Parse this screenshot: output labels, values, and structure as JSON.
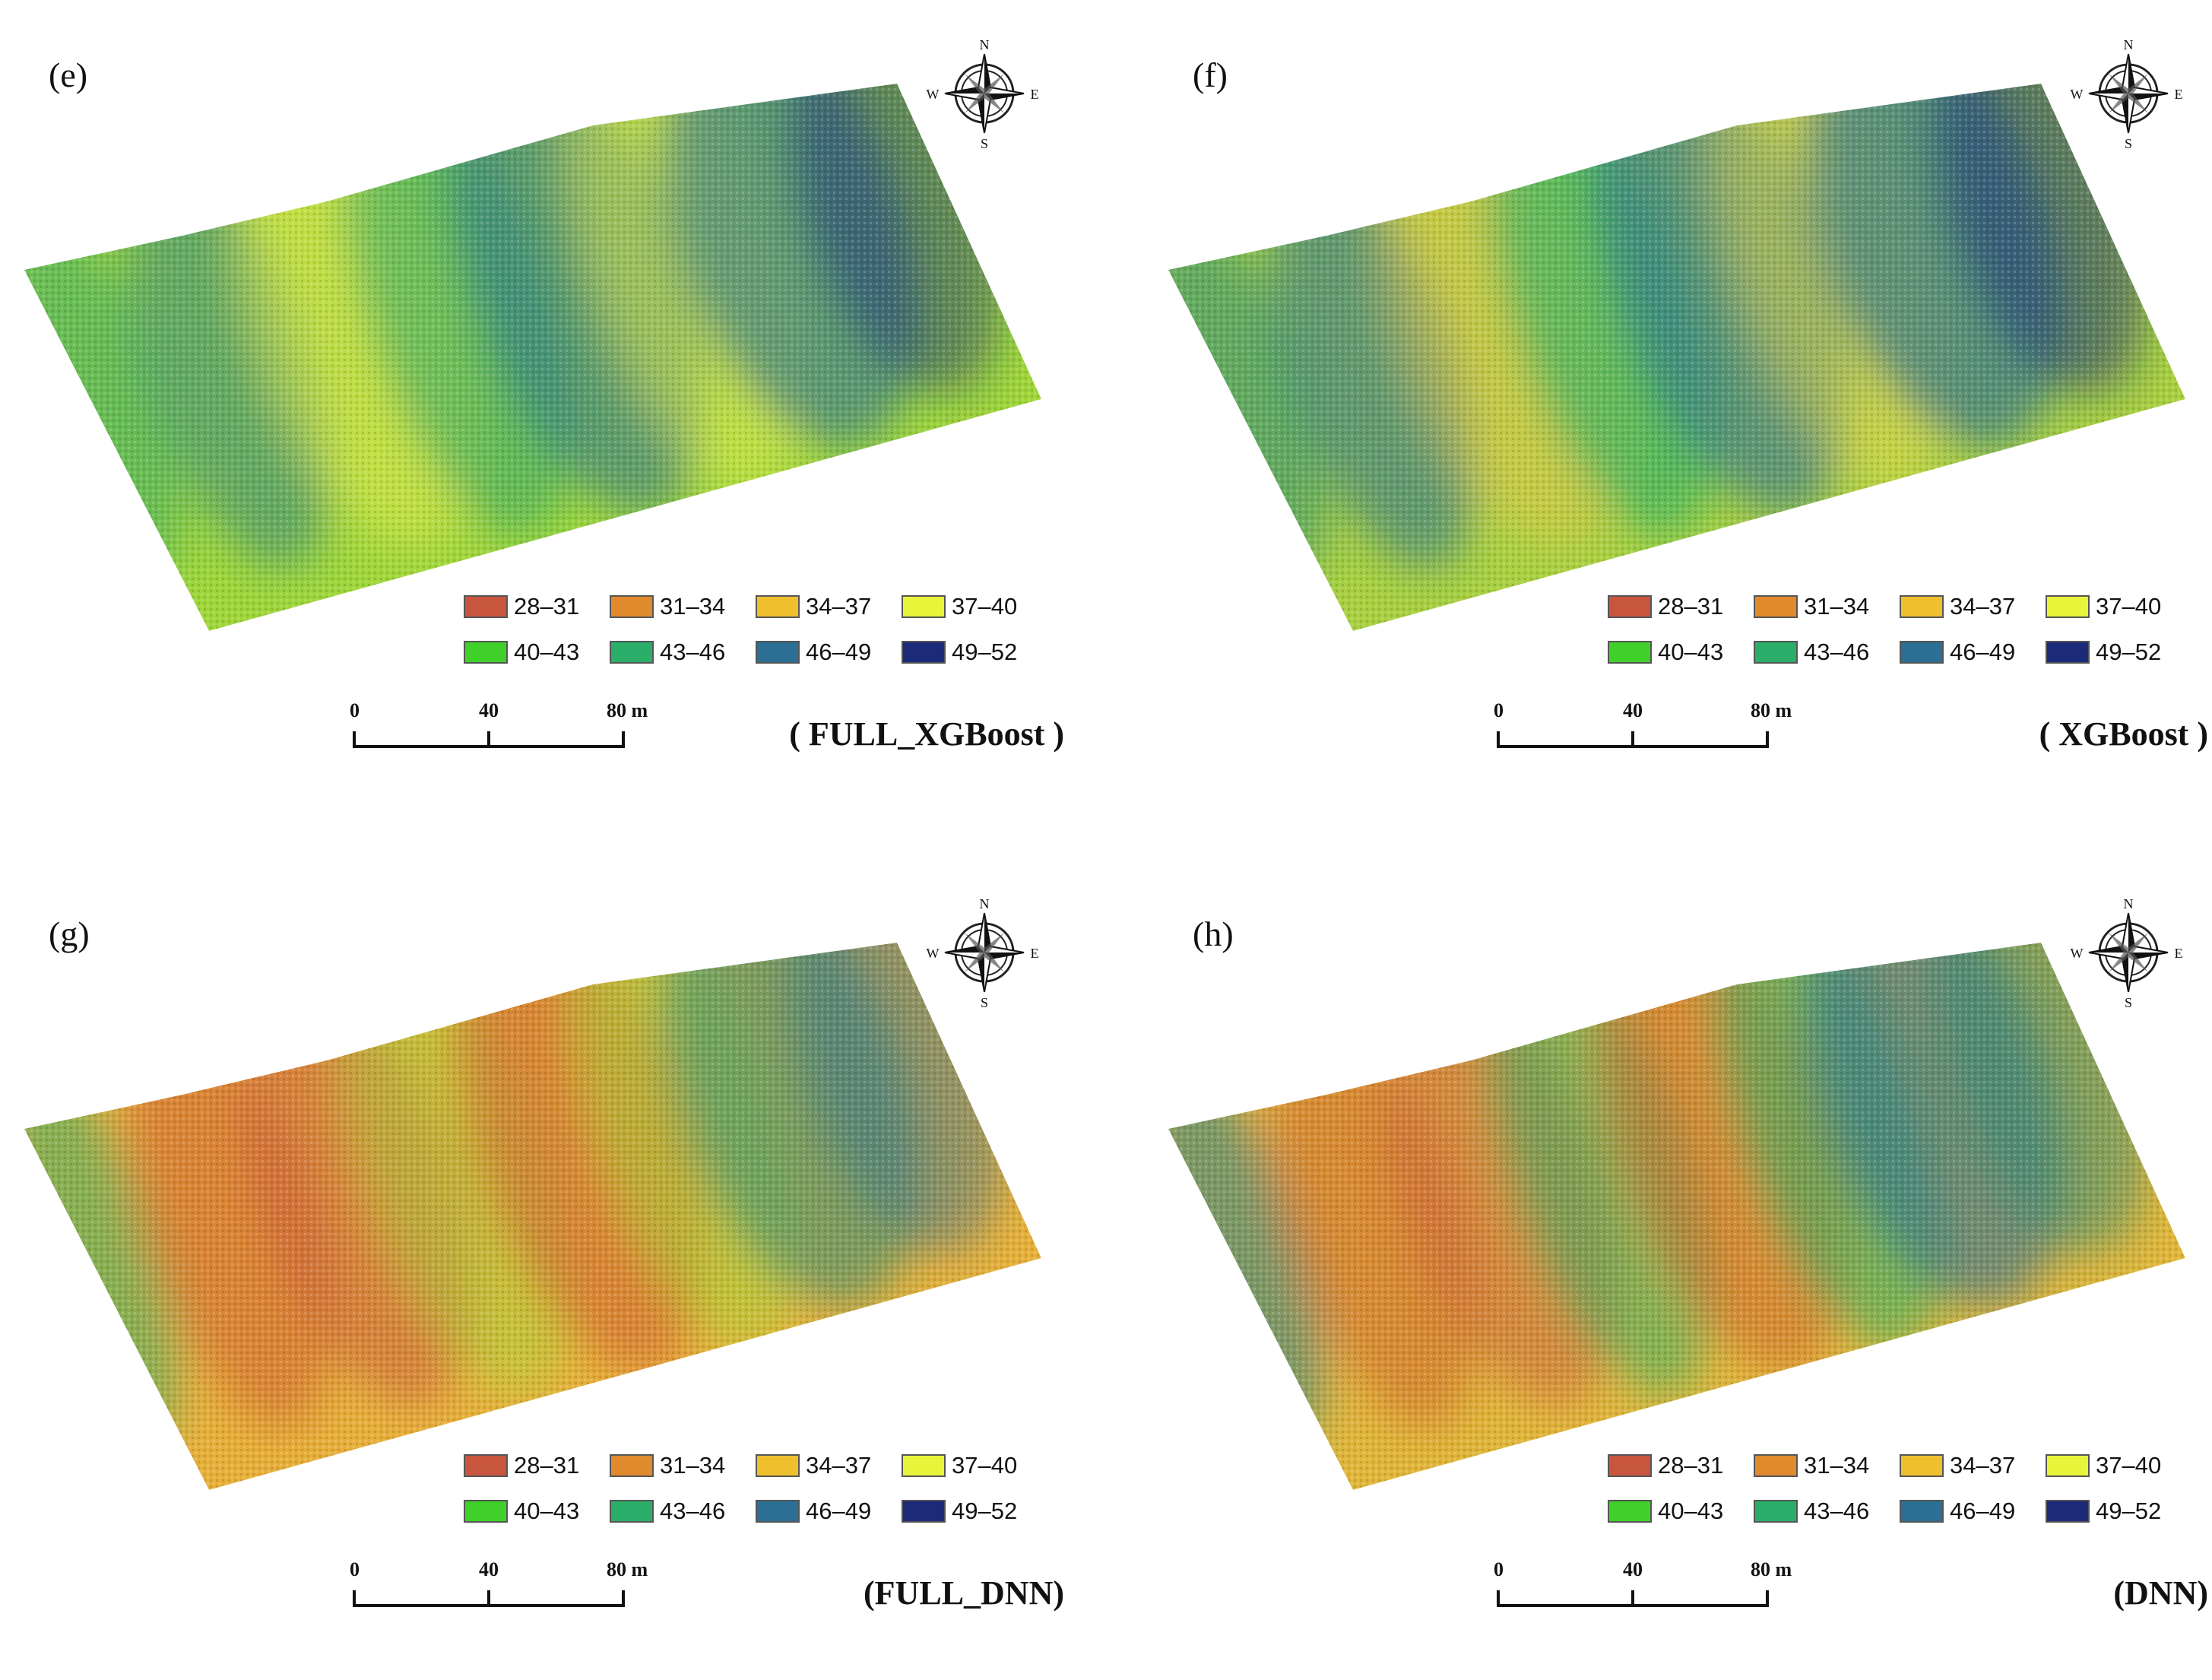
{
  "colors": {
    "28-31": "#c8553d",
    "31-34": "#e08a2e",
    "34-37": "#f0bf2e",
    "37-40": "#e8f43a",
    "40-43": "#3fd12a",
    "43-46": "#2aae6a",
    "46-49": "#2b6f94",
    "49-52": "#1c2a7a"
  },
  "legend": {
    "items": [
      {
        "label": "28–31",
        "color": "#c8553d"
      },
      {
        "label": "31–34",
        "color": "#e08a2e"
      },
      {
        "label": "34–37",
        "color": "#f0bf2e"
      },
      {
        "label": "37–40",
        "color": "#e8f43a"
      },
      {
        "label": "40–43",
        "color": "#3fd12a"
      },
      {
        "label": "43–46",
        "color": "#2aae6a"
      },
      {
        "label": "46–49",
        "color": "#2b6f94"
      },
      {
        "label": "49–52",
        "color": "#1c2a7a"
      }
    ]
  },
  "scale": {
    "ticks": [
      "0",
      "40",
      "80 m"
    ]
  },
  "compass": {
    "north": "N",
    "south": "S",
    "east": "E",
    "west": "W"
  },
  "panels": [
    {
      "letter": "(e)",
      "model": "( FULL_XGBoost )",
      "base": "#9fd63a",
      "patches": [
        {
          "c": "#3aa86a",
          "o": 0.55
        },
        {
          "c": "#2b7f8a",
          "o": 0.5
        },
        {
          "c": "#e6ea4a",
          "o": 0.5
        },
        {
          "c": "#3aa86a",
          "o": 0.6
        },
        {
          "c": "#2b6f94",
          "o": 0.55
        },
        {
          "c": "#e6ea4a",
          "o": 0.45
        },
        {
          "c": "#2b6f94",
          "o": 0.6
        },
        {
          "c": "#1c2a7a",
          "o": 0.45
        }
      ]
    },
    {
      "letter": "(f)",
      "model": "( XGBoost )",
      "base": "#a8d040",
      "patches": [
        {
          "c": "#2b8a7a",
          "o": 0.55
        },
        {
          "c": "#2b6f94",
          "o": 0.55
        },
        {
          "c": "#e8c44a",
          "o": 0.45
        },
        {
          "c": "#2aae6a",
          "o": 0.6
        },
        {
          "c": "#2b6f94",
          "o": 0.6
        },
        {
          "c": "#e8d84a",
          "o": 0.45
        },
        {
          "c": "#2b6f94",
          "o": 0.65
        },
        {
          "c": "#1c2a7a",
          "o": 0.5
        }
      ]
    },
    {
      "letter": "(g)",
      "model": "(FULL_DNN)",
      "base": "#e7b03a",
      "patches": [
        {
          "c": "#2aae6a",
          "o": 0.5
        },
        {
          "c": "#d0602e",
          "o": 0.55
        },
        {
          "c": "#c8553d",
          "o": 0.5
        },
        {
          "c": "#9fd63a",
          "o": 0.45
        },
        {
          "c": "#d0602e",
          "o": 0.55
        },
        {
          "c": "#9fd63a",
          "o": 0.5
        },
        {
          "c": "#2b8a7a",
          "o": 0.55
        },
        {
          "c": "#2b6f94",
          "o": 0.45
        }
      ]
    },
    {
      "letter": "(h)",
      "model": "(DNN)",
      "base": "#e0b63a",
      "patches": [
        {
          "c": "#2b7f8a",
          "o": 0.55
        },
        {
          "c": "#d0602e",
          "o": 0.5
        },
        {
          "c": "#c8553d",
          "o": 0.45
        },
        {
          "c": "#2aae6a",
          "o": 0.5
        },
        {
          "c": "#d0602e",
          "o": 0.5
        },
        {
          "c": "#2aae6a",
          "o": 0.55
        },
        {
          "c": "#2b6f94",
          "o": 0.6
        },
        {
          "c": "#2b8a7a",
          "o": 0.5
        }
      ]
    }
  ]
}
